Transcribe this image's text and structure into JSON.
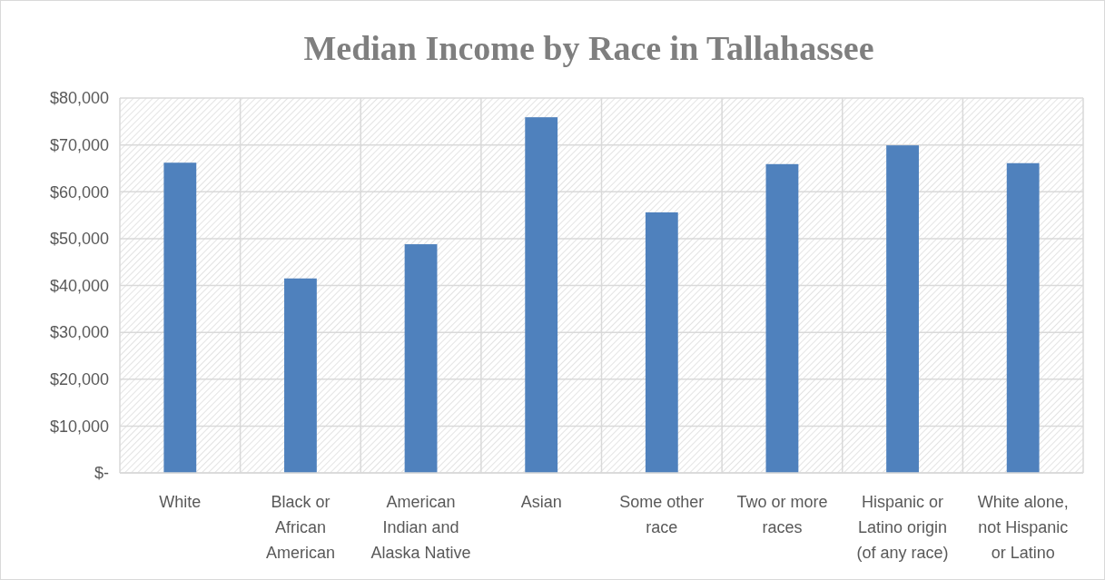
{
  "chart_data": {
    "type": "bar",
    "title": "Median Income by Race in Tallahassee",
    "categories": [
      "White",
      "Black or African American",
      "American Indian and Alaska Native",
      "Asian",
      "Some other race",
      "Two or more races",
      "Hispanic or Latino origin (of any race)",
      "White alone, not Hispanic or Latino"
    ],
    "values": [
      66200,
      41500,
      48800,
      75900,
      55600,
      65900,
      69900,
      66100
    ],
    "color": "#4f81bd",
    "ylim": [
      0,
      80000
    ],
    "yticks": [
      {
        "value": 0,
        "label": "$-"
      },
      {
        "value": 10000,
        "label": "$10,000"
      },
      {
        "value": 20000,
        "label": "$20,000"
      },
      {
        "value": 30000,
        "label": "$30,000"
      },
      {
        "value": 40000,
        "label": "$40,000"
      },
      {
        "value": 50000,
        "label": "$50,000"
      },
      {
        "value": 60000,
        "label": "$60,000"
      },
      {
        "value": 70000,
        "label": "$70,000"
      },
      {
        "value": 80000,
        "label": "$80,000"
      }
    ],
    "grid": true
  }
}
